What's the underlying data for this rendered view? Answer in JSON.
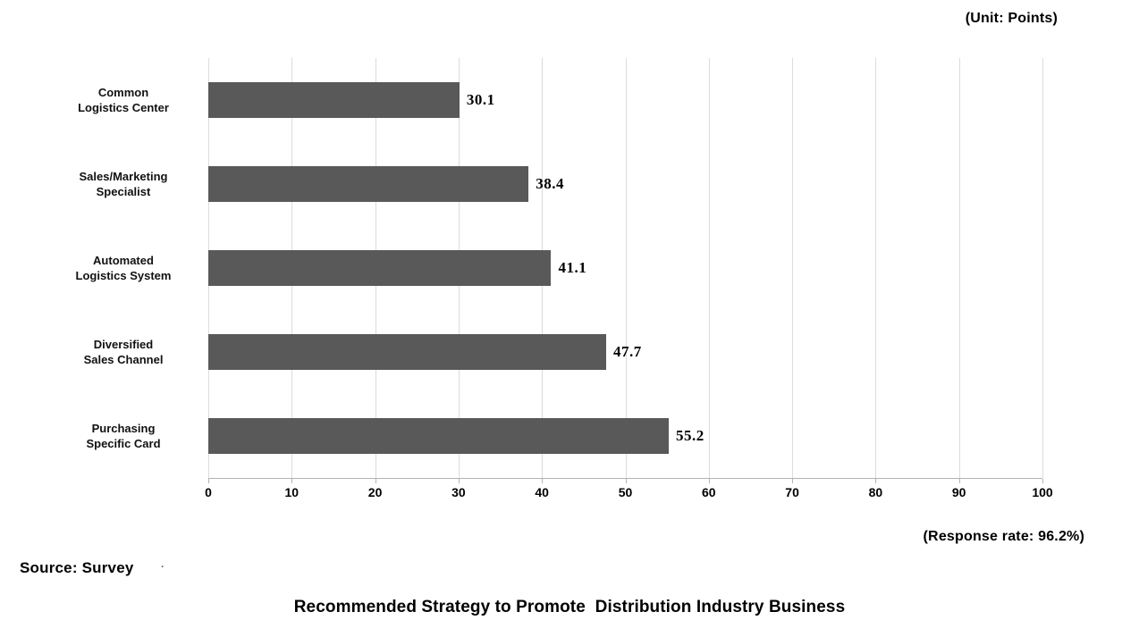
{
  "unit_note": "(Unit: Points)",
  "response_note": "(Response rate: 96.2%)",
  "source": {
    "label": "Source: Survey",
    "mark": "·"
  },
  "title": "Recommended Strategy to Promote  Distribution Industry Business",
  "chart_data": {
    "type": "bar",
    "orientation": "horizontal",
    "title": "Recommended Strategy to Promote Distribution Industry Business",
    "xlabel": "",
    "ylabel": "",
    "categories": [
      "Common\nLogistics Center",
      "Sales/Marketing\nSpecialist",
      "Automated\nLogistics System",
      "Diversified\nSales Channel",
      "Purchasing\nSpecific Card"
    ],
    "values": [
      30.1,
      38.4,
      41.1,
      47.7,
      55.2
    ],
    "value_labels": [
      "30.1",
      "38.4",
      "41.1",
      "47.7",
      "55.2"
    ],
    "xlim": [
      0,
      100
    ],
    "xticks": [
      0,
      10,
      20,
      30,
      40,
      50,
      60,
      70,
      80,
      90,
      100
    ],
    "grid": "vertical-on",
    "legend": "none",
    "unit": "Points",
    "response_rate_pct": 96.2,
    "colors": {
      "bar": "#595959",
      "gridline": "#dcdcdc",
      "axis": "#b3b3b3",
      "text": "#000000"
    }
  }
}
